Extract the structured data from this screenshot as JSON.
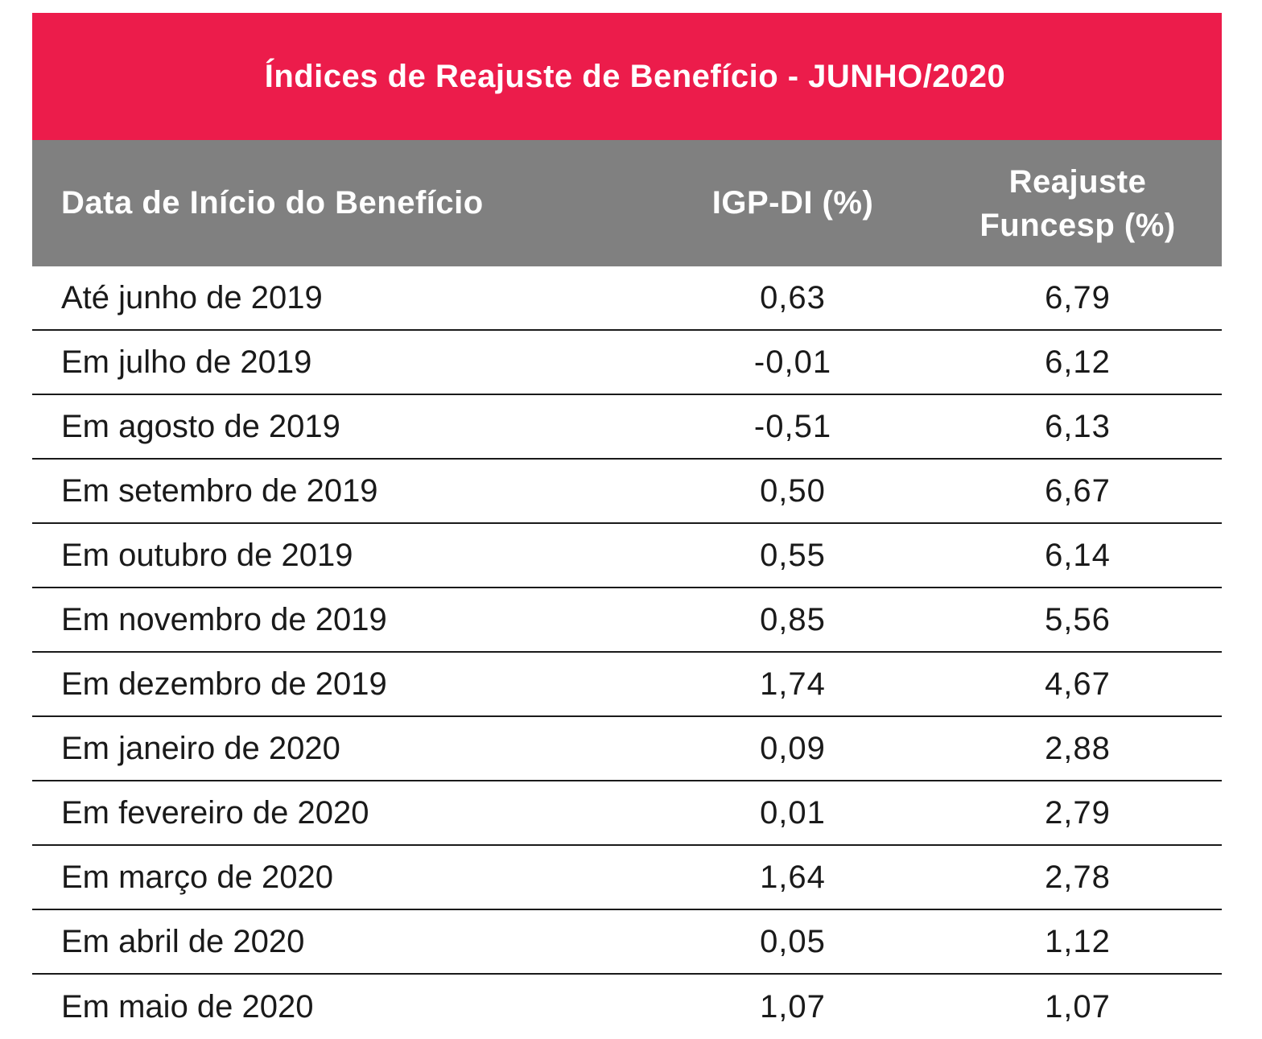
{
  "table": {
    "title": "Índices de Reajuste de Benefício - JUNHO/2020",
    "headers": {
      "date": "Data de Início do Benefício",
      "igp": "IGP-DI (%)",
      "funcesp_line1": "Reajuste",
      "funcesp_line2": "Funcesp (%)"
    },
    "rows": [
      {
        "date": "Até junho de 2019",
        "igp": "0,63",
        "funcesp": "6,79"
      },
      {
        "date": "Em julho de 2019",
        "igp": "-0,01",
        "funcesp": "6,12"
      },
      {
        "date": "Em agosto de 2019",
        "igp": "-0,51",
        "funcesp": "6,13"
      },
      {
        "date": "Em setembro de 2019",
        "igp": "0,50",
        "funcesp": "6,67"
      },
      {
        "date": "Em outubro de 2019",
        "igp": "0,55",
        "funcesp": "6,14"
      },
      {
        "date": "Em novembro de 2019",
        "igp": "0,85",
        "funcesp": "5,56"
      },
      {
        "date": "Em dezembro de 2019",
        "igp": "1,74",
        "funcesp": "4,67"
      },
      {
        "date": "Em janeiro de 2020",
        "igp": "0,09",
        "funcesp": "2,88"
      },
      {
        "date": "Em fevereiro de 2020",
        "igp": "0,01",
        "funcesp": "2,79"
      },
      {
        "date": "Em março de 2020",
        "igp": "1,64",
        "funcesp": "2,78"
      },
      {
        "date": "Em abril de 2020",
        "igp": "0,05",
        "funcesp": "1,12"
      },
      {
        "date": "Em maio de 2020",
        "igp": "1,07",
        "funcesp": "1,07"
      }
    ]
  },
  "colors": {
    "title_background": "#ec1c4b",
    "header_background": "#808080",
    "header_text": "#ffffff",
    "body_text": "#1a1a1a"
  }
}
